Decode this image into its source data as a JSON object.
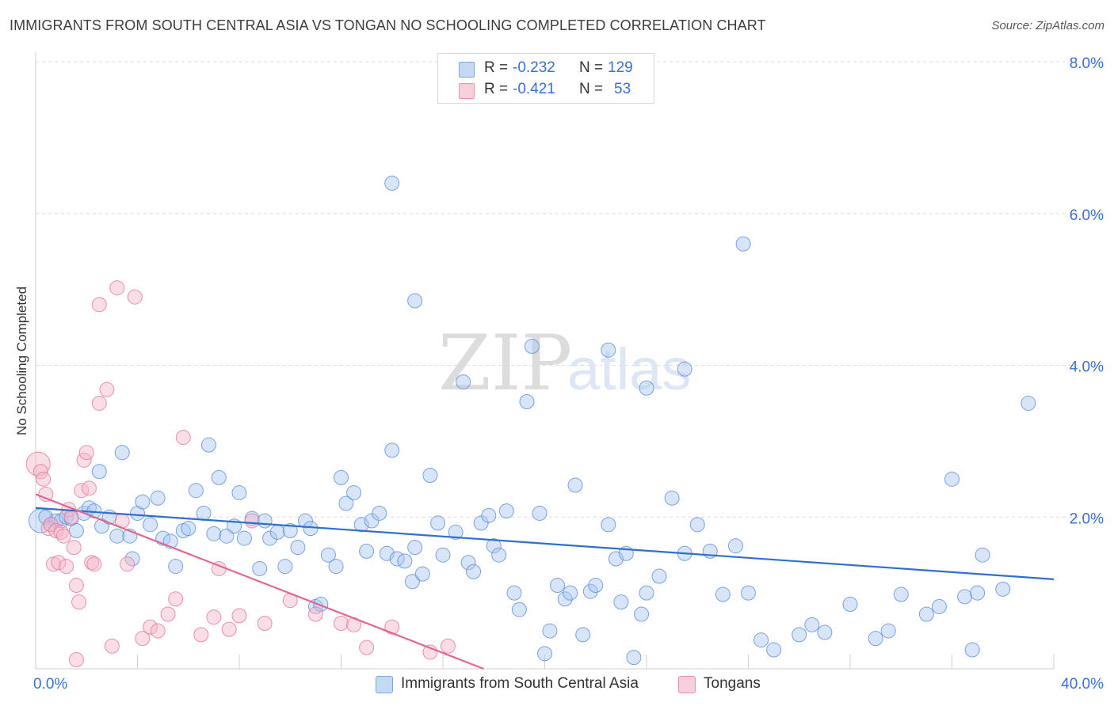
{
  "title": "IMMIGRANTS FROM SOUTH CENTRAL ASIA VS TONGAN NO SCHOOLING COMPLETED CORRELATION CHART",
  "source": "Source: ZipAtlas.com",
  "watermark": {
    "zip": "ZIP",
    "atlas": "atlas"
  },
  "legend": {
    "rows": [
      {
        "r_label": "R =",
        "r_value": "-0.232",
        "n_label": "N =",
        "n_value": "129",
        "color": "#a9c6f0"
      },
      {
        "r_label": "R =",
        "r_value": "-0.421",
        "n_label": "N =",
        "n_value": "53",
        "color": "#f5b5c8"
      }
    ]
  },
  "bottom_legend": {
    "items": [
      {
        "label": "Immigrants from South Central Asia",
        "color": "#a9c6f0"
      },
      {
        "label": "Tongans",
        "color": "#f5b5c8"
      }
    ]
  },
  "chart_data": {
    "type": "scatter",
    "title": "IMMIGRANTS FROM SOUTH CENTRAL ASIA VS TONGAN NO SCHOOLING COMPLETED CORRELATION CHART",
    "xlabel": "",
    "ylabel": "No Schooling Completed",
    "xlim": [
      0,
      40
    ],
    "ylim": [
      0,
      8
    ],
    "x_tick_labels": [
      "0.0%",
      "40.0%"
    ],
    "y_tick_labels": [
      "2.0%",
      "4.0%",
      "6.0%",
      "8.0%"
    ],
    "y_ticks": [
      2,
      4,
      6,
      8
    ],
    "grid": true,
    "legend_position": "top-center",
    "series": [
      {
        "name": "Immigrants from South Central Asia",
        "color": "#5b8fd9",
        "fill": "#a9c6f0",
        "r": -0.232,
        "n": 129,
        "trend": {
          "x": [
            0,
            40
          ],
          "y": [
            2.12,
            1.18
          ]
        },
        "points": [
          [
            0.2,
            1.95
          ],
          [
            0.4,
            2.0
          ],
          [
            0.6,
            1.9
          ],
          [
            0.8,
            1.95
          ],
          [
            1.0,
            1.95
          ],
          [
            1.2,
            2.0
          ],
          [
            1.4,
            1.98
          ],
          [
            1.6,
            1.82
          ],
          [
            1.9,
            2.05
          ],
          [
            2.1,
            2.12
          ],
          [
            2.3,
            2.08
          ],
          [
            2.6,
            1.88
          ],
          [
            2.9,
            2.0
          ],
          [
            3.2,
            1.75
          ],
          [
            3.7,
            1.75
          ],
          [
            2.5,
            2.6
          ],
          [
            3.4,
            2.85
          ],
          [
            3.8,
            1.45
          ],
          [
            4.0,
            2.05
          ],
          [
            4.2,
            2.2
          ],
          [
            4.5,
            1.9
          ],
          [
            4.8,
            2.25
          ],
          [
            5.0,
            1.72
          ],
          [
            5.3,
            1.68
          ],
          [
            5.5,
            1.35
          ],
          [
            5.8,
            1.82
          ],
          [
            6.0,
            1.85
          ],
          [
            6.3,
            2.35
          ],
          [
            6.6,
            2.05
          ],
          [
            6.8,
            2.95
          ],
          [
            7.0,
            1.78
          ],
          [
            7.2,
            2.52
          ],
          [
            7.5,
            1.75
          ],
          [
            7.8,
            1.88
          ],
          [
            8.0,
            2.32
          ],
          [
            8.2,
            1.72
          ],
          [
            8.5,
            1.98
          ],
          [
            8.8,
            1.32
          ],
          [
            9.0,
            1.95
          ],
          [
            9.2,
            1.72
          ],
          [
            9.5,
            1.8
          ],
          [
            9.8,
            1.35
          ],
          [
            10.0,
            1.82
          ],
          [
            10.3,
            1.6
          ],
          [
            10.6,
            1.95
          ],
          [
            10.8,
            1.85
          ],
          [
            11.0,
            0.82
          ],
          [
            11.2,
            0.85
          ],
          [
            11.5,
            1.5
          ],
          [
            11.8,
            1.35
          ],
          [
            12.0,
            2.52
          ],
          [
            12.2,
            2.18
          ],
          [
            12.5,
            2.32
          ],
          [
            12.8,
            1.9
          ],
          [
            13.0,
            1.55
          ],
          [
            13.2,
            1.95
          ],
          [
            13.5,
            2.05
          ],
          [
            13.8,
            1.52
          ],
          [
            14.0,
            2.88
          ],
          [
            14.2,
            1.45
          ],
          [
            14.5,
            1.42
          ],
          [
            14.8,
            1.15
          ],
          [
            14.9,
            1.6
          ],
          [
            15.2,
            1.25
          ],
          [
            15.5,
            2.55
          ],
          [
            15.8,
            1.92
          ],
          [
            16.0,
            1.5
          ],
          [
            14.0,
            6.4
          ],
          [
            14.9,
            4.85
          ],
          [
            16.5,
            1.8
          ],
          [
            16.8,
            3.78
          ],
          [
            17.0,
            1.4
          ],
          [
            17.2,
            1.28
          ],
          [
            17.5,
            1.92
          ],
          [
            17.8,
            2.02
          ],
          [
            18.0,
            1.62
          ],
          [
            18.2,
            1.5
          ],
          [
            18.5,
            2.08
          ],
          [
            18.8,
            1.0
          ],
          [
            19.0,
            0.78
          ],
          [
            19.3,
            3.52
          ],
          [
            19.5,
            4.25
          ],
          [
            19.8,
            2.05
          ],
          [
            20.0,
            0.2
          ],
          [
            20.2,
            0.5
          ],
          [
            20.5,
            1.1
          ],
          [
            20.8,
            0.92
          ],
          [
            21.0,
            1.0
          ],
          [
            21.2,
            2.42
          ],
          [
            21.5,
            0.45
          ],
          [
            21.8,
            1.02
          ],
          [
            22.0,
            1.1
          ],
          [
            22.5,
            1.9
          ],
          [
            22.8,
            1.45
          ],
          [
            23.0,
            0.88
          ],
          [
            23.2,
            1.52
          ],
          [
            23.5,
            0.15
          ],
          [
            23.8,
            0.72
          ],
          [
            24.0,
            1.0
          ],
          [
            24.5,
            1.22
          ],
          [
            25.0,
            2.25
          ],
          [
            25.5,
            1.52
          ],
          [
            26.0,
            1.9
          ],
          [
            26.5,
            1.55
          ],
          [
            27.0,
            0.98
          ],
          [
            27.5,
            1.62
          ],
          [
            28.0,
            1.0
          ],
          [
            28.5,
            0.38
          ],
          [
            29.0,
            0.25
          ],
          [
            30.0,
            0.45
          ],
          [
            30.5,
            0.58
          ],
          [
            31.0,
            0.48
          ],
          [
            32.0,
            0.85
          ],
          [
            33.0,
            0.4
          ],
          [
            33.5,
            0.5
          ],
          [
            34.0,
            0.98
          ],
          [
            35.0,
            0.72
          ],
          [
            35.5,
            0.82
          ],
          [
            36.0,
            2.5
          ],
          [
            36.5,
            0.95
          ],
          [
            37.0,
            1.0
          ],
          [
            37.2,
            1.5
          ],
          [
            38.0,
            1.05
          ],
          [
            39.0,
            3.5
          ],
          [
            22.5,
            4.2
          ],
          [
            24.0,
            3.7
          ],
          [
            25.5,
            3.95
          ],
          [
            27.8,
            5.6
          ],
          [
            36.8,
            0.25
          ]
        ]
      },
      {
        "name": "Tongans",
        "color": "#e8769b",
        "fill": "#f5b5c8",
        "r": -0.421,
        "n": 53,
        "trend": {
          "x": [
            0,
            17.6
          ],
          "y": [
            2.3,
            0.0
          ]
        },
        "points": [
          [
            0.1,
            2.7
          ],
          [
            0.2,
            2.6
          ],
          [
            0.3,
            2.5
          ],
          [
            0.4,
            2.3
          ],
          [
            0.5,
            1.85
          ],
          [
            0.6,
            1.9
          ],
          [
            0.7,
            1.38
          ],
          [
            0.8,
            1.82
          ],
          [
            0.9,
            1.4
          ],
          [
            1.0,
            1.8
          ],
          [
            1.1,
            1.75
          ],
          [
            1.2,
            1.35
          ],
          [
            1.3,
            2.1
          ],
          [
            1.4,
            2.0
          ],
          [
            1.5,
            1.6
          ],
          [
            1.6,
            1.1
          ],
          [
            1.7,
            0.88
          ],
          [
            1.8,
            2.35
          ],
          [
            1.9,
            2.75
          ],
          [
            2.0,
            2.85
          ],
          [
            2.1,
            2.38
          ],
          [
            2.2,
            1.4
          ],
          [
            2.3,
            1.38
          ],
          [
            2.5,
            3.5
          ],
          [
            2.8,
            3.68
          ],
          [
            3.2,
            5.02
          ],
          [
            3.4,
            1.95
          ],
          [
            3.6,
            1.38
          ],
          [
            3.9,
            4.9
          ],
          [
            4.2,
            0.4
          ],
          [
            4.5,
            0.55
          ],
          [
            4.8,
            0.5
          ],
          [
            5.2,
            0.72
          ],
          [
            5.5,
            0.92
          ],
          [
            5.8,
            3.05
          ],
          [
            6.5,
            0.45
          ],
          [
            7.0,
            0.68
          ],
          [
            7.2,
            1.32
          ],
          [
            7.6,
            0.52
          ],
          [
            8.0,
            0.7
          ],
          [
            8.5,
            1.95
          ],
          [
            9.0,
            0.6
          ],
          [
            10.0,
            0.9
          ],
          [
            11.0,
            0.72
          ],
          [
            12.0,
            0.6
          ],
          [
            12.5,
            0.58
          ],
          [
            13.0,
            0.28
          ],
          [
            14.0,
            0.55
          ],
          [
            15.5,
            0.22
          ],
          [
            16.2,
            0.3
          ],
          [
            2.5,
            4.8
          ],
          [
            1.6,
            0.12
          ],
          [
            3.0,
            0.3
          ]
        ]
      }
    ]
  }
}
